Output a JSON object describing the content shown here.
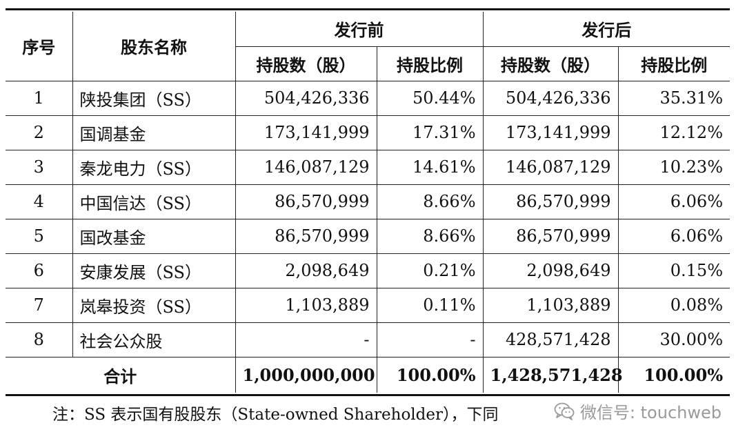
{
  "table": {
    "header": {
      "seq": "序号",
      "name": "股东名称",
      "before_group": "发行前",
      "after_group": "发行后",
      "shares_label": "持股数（股）",
      "ratio_label": "持股比例"
    },
    "rows": [
      {
        "idx": "1",
        "name": "陕投集团（SS）",
        "before_shares": "504,426,336",
        "before_ratio": "50.44%",
        "after_shares": "504,426,336",
        "after_ratio": "35.31%"
      },
      {
        "idx": "2",
        "name": "国调基金",
        "before_shares": "173,141,999",
        "before_ratio": "17.31%",
        "after_shares": "173,141,999",
        "after_ratio": "12.12%"
      },
      {
        "idx": "3",
        "name": "秦龙电力（SS）",
        "before_shares": "146,087,129",
        "before_ratio": "14.61%",
        "after_shares": "146,087,129",
        "after_ratio": "10.23%"
      },
      {
        "idx": "4",
        "name": "中国信达（SS）",
        "before_shares": "86,570,999",
        "before_ratio": "8.66%",
        "after_shares": "86,570,999",
        "after_ratio": "6.06%"
      },
      {
        "idx": "5",
        "name": "国改基金",
        "before_shares": "86,570,999",
        "before_ratio": "8.66%",
        "after_shares": "86,570,999",
        "after_ratio": "6.06%"
      },
      {
        "idx": "6",
        "name": "安康发展（SS）",
        "before_shares": "2,098,649",
        "before_ratio": "0.21%",
        "after_shares": "2,098,649",
        "after_ratio": "0.15%"
      },
      {
        "idx": "7",
        "name": "岚皋投资（SS）",
        "before_shares": "1,103,889",
        "before_ratio": "0.11%",
        "after_shares": "1,103,889",
        "after_ratio": "0.08%"
      },
      {
        "idx": "8",
        "name": "社会公众股",
        "before_shares": "-",
        "before_ratio": "-",
        "after_shares": "428,571,428",
        "after_ratio": "30.00%"
      }
    ],
    "total": {
      "label": "合计",
      "before_shares": "1,000,000,000",
      "before_ratio": "100.00%",
      "after_shares": "1,428,571,428",
      "after_ratio": "100.00%"
    }
  },
  "note": "注：SS 表示国有股股东（State-owned Shareholder），下同",
  "watermark": {
    "text": "微信号: touchweb",
    "icon": "wechat-icon"
  }
}
